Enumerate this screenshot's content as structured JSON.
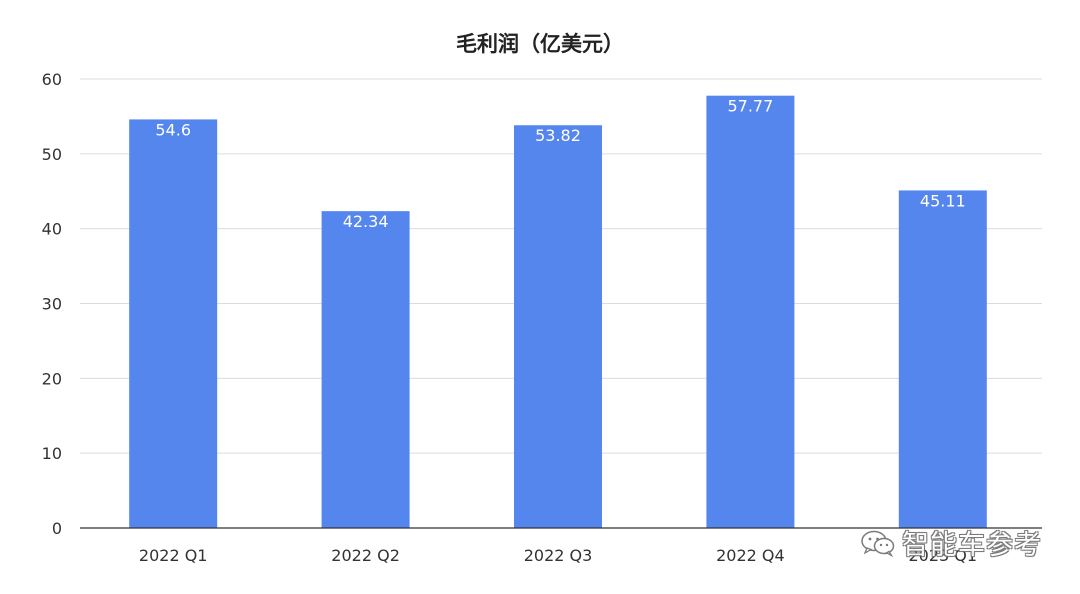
{
  "chart_data": {
    "type": "bar",
    "title": "毛利润（亿美元）",
    "categories": [
      "2022 Q1",
      "2022 Q2",
      "2022 Q3",
      "2022 Q4",
      "2023 Q1"
    ],
    "values": [
      54.6,
      42.34,
      53.82,
      57.77,
      45.11
    ],
    "data_labels": [
      "54.6",
      "42.34",
      "53.82",
      "57.77",
      "45.11"
    ],
    "xlabel": "",
    "ylabel": "",
    "ylim": [
      0,
      60
    ],
    "yticks": [
      0,
      10,
      20,
      30,
      40,
      50,
      60
    ],
    "grid": true,
    "legend": "none",
    "bar_color": "#5586ee",
    "grid_color": "#dcdcdc",
    "axis_color": "#333333"
  },
  "watermark": {
    "text": "智能车参考",
    "icon": "wechat-icon"
  }
}
